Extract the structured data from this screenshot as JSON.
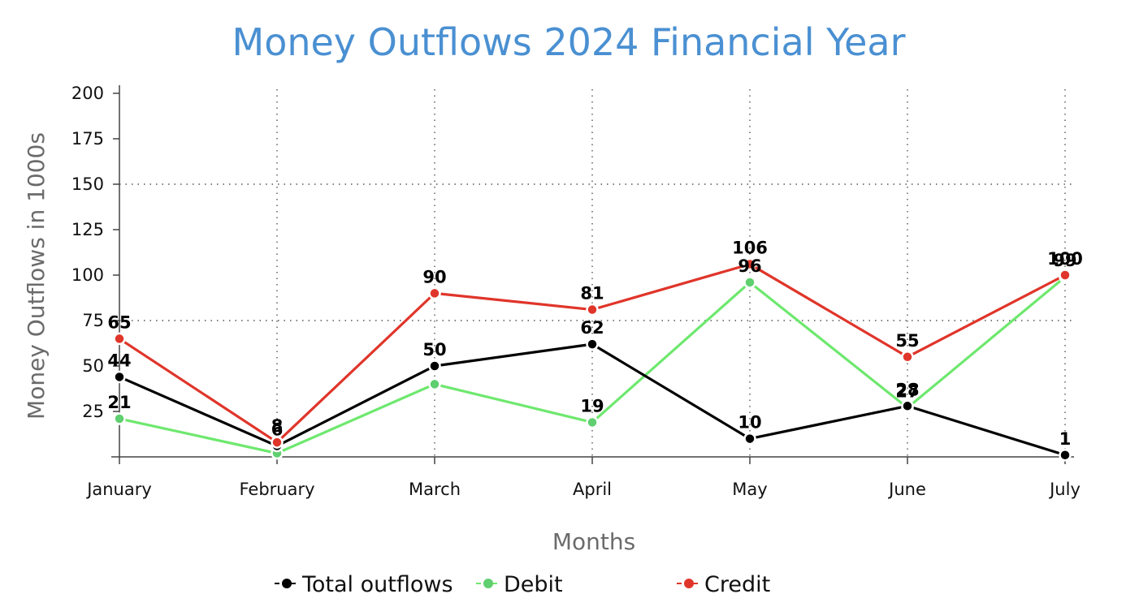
{
  "chart_data": {
    "type": "line",
    "title": "Money Outflows 2024 Financial Year",
    "xlabel": "Months",
    "ylabel": "Money Outflows in 1000s",
    "categories": [
      "January",
      "February",
      "March",
      "April",
      "May",
      "June",
      "July"
    ],
    "ylim": [
      0,
      200
    ],
    "yticks": [
      25,
      50,
      75,
      100,
      125,
      150,
      175,
      200
    ],
    "grid": "dotted",
    "legend_position": "bottom",
    "series": [
      {
        "name": "Total outflows",
        "color": "#000000",
        "values": [
          44,
          6,
          50,
          62,
          10,
          28,
          1
        ]
      },
      {
        "name": "Debit",
        "color": "#6ee86e",
        "marker_color": "#5fcf6f",
        "values": [
          21,
          2,
          40,
          19,
          96,
          27,
          99
        ]
      },
      {
        "name": "Credit",
        "color": "#e0352a",
        "values": [
          65,
          8,
          90,
          81,
          106,
          55,
          100
        ]
      }
    ],
    "data_labels": [
      {
        "series": 0,
        "values": [
          "44",
          "6",
          "50",
          "62",
          "10",
          "28",
          "1"
        ]
      },
      {
        "series": 1,
        "values": [
          "21",
          "",
          "",
          "19",
          "96",
          "27",
          "99"
        ]
      },
      {
        "series": 2,
        "values": [
          "65",
          "8",
          "90",
          "81",
          "106",
          "55",
          "100"
        ]
      }
    ]
  }
}
